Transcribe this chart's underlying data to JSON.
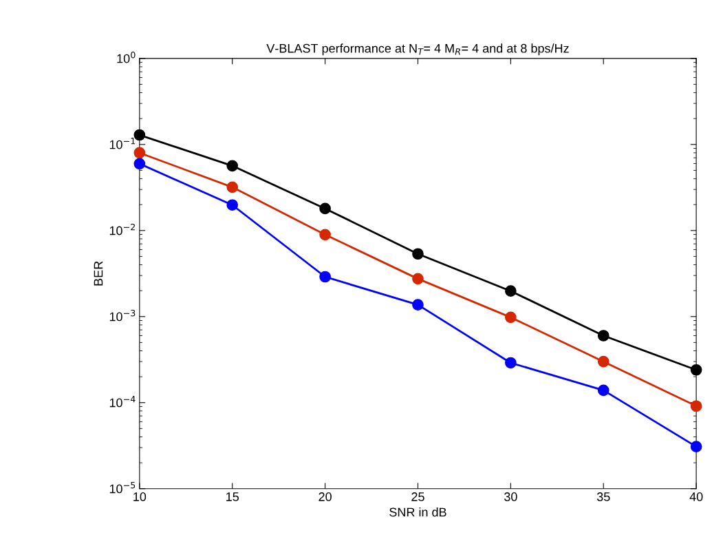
{
  "chart_data": {
    "type": "line",
    "title": "V-BLAST performance at N$_{T}$= 4 M$_{R}$= 4 and at 8 bps/Hz",
    "xlabel": "SNR in dB",
    "ylabel": "BER",
    "x": [
      10,
      15,
      20,
      25,
      30,
      35,
      40
    ],
    "series": [
      {
        "color": "#000000",
        "values": [
          0.129,
          0.0565,
          0.018,
          0.00535,
          0.00198,
          0.0006,
          0.00024
        ]
      },
      {
        "color": "#d62800",
        "values": [
          0.08,
          0.0319,
          0.00895,
          0.00275,
          0.00098,
          0.0003,
          9.12e-05
        ]
      },
      {
        "color": "#0000ff",
        "values": [
          0.0597,
          0.0198,
          0.0029,
          0.00137,
          0.00029,
          0.000139,
          3.08e-05
        ]
      }
    ],
    "log": "y",
    "marker": "circle",
    "line_style": "solid",
    "grid": false,
    "xlim": [
      10,
      40
    ],
    "xticks": [
      10,
      15,
      20,
      25,
      30,
      35,
      40
    ],
    "ylim": [
      1e-05,
      1
    ],
    "yticks": [
      {
        "value": 1e-05,
        "label": "10$^{−5}$"
      },
      {
        "value": 0.0001,
        "label": "10$^{−4}$"
      },
      {
        "value": 0.001,
        "label": "10$^{−3}$"
      },
      {
        "value": 0.01,
        "label": "10$^{−2}$"
      },
      {
        "value": 0.1,
        "label": "10$^{−1}$"
      },
      {
        "value": 1,
        "label": "10$^{0}$"
      }
    ]
  }
}
